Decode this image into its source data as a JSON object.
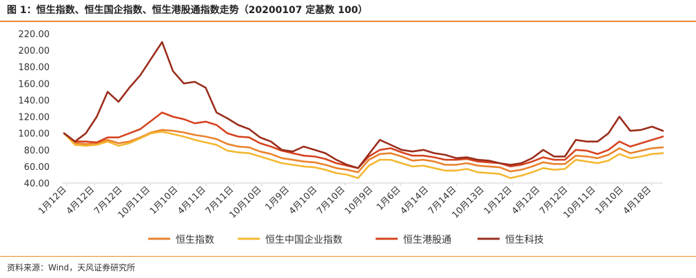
{
  "header": {
    "title": "图 1：恒生指数、恒生国企指数、恒生港股通指数走势（20200107 定基数 100）"
  },
  "footer": {
    "source": "资料来源：Wind，天风证券研究所"
  },
  "colors": {
    "rule": "#e9862e",
    "axis": "#cfcfcf"
  },
  "chart_data": {
    "type": "line",
    "title": "恒生指数、恒生国企指数、恒生港股通指数走势（20200107 定基数 100）",
    "xlabel": "",
    "ylabel": "",
    "ylim": [
      40,
      220
    ],
    "yticks": [
      "220.00",
      "200.00",
      "180.00",
      "160.00",
      "140.00",
      "120.00",
      "100.00",
      "80.00",
      "60.00",
      "40.00"
    ],
    "xticks": [
      "1月12日",
      "4月12日",
      "7月12日",
      "10月11日",
      "1月10日",
      "4月11日",
      "7月11日",
      "10月10日",
      "1月9日",
      "4月10日",
      "7月10日",
      "10月9日",
      "1月6日",
      "4月14日",
      "7月14日",
      "10月13日",
      "1月12日",
      "4月12日",
      "7月12日",
      "10月11日",
      "1月10日",
      "4月18日"
    ],
    "legend_position": "bottom",
    "series": [
      {
        "name": "恒生指数",
        "color": "#e9822c",
        "values": [
          100,
          88,
          87,
          88,
          92,
          88,
          90,
          95,
          101,
          104,
          103,
          101,
          98,
          96,
          93,
          87,
          84,
          83,
          78,
          75,
          70,
          68,
          66,
          65,
          62,
          58,
          56,
          53,
          68,
          75,
          76,
          72,
          67,
          68,
          66,
          62,
          62,
          64,
          61,
          60,
          59,
          54,
          56,
          60,
          65,
          63,
          63,
          73,
          72,
          70,
          74,
          82,
          76,
          79,
          82,
          83
        ]
      },
      {
        "name": "恒生中国企业指数",
        "color": "#f4b731",
        "values": [
          100,
          86,
          85,
          86,
          90,
          85,
          88,
          94,
          100,
          102,
          99,
          96,
          92,
          89,
          86,
          79,
          77,
          76,
          72,
          68,
          64,
          62,
          60,
          59,
          56,
          52,
          50,
          46,
          61,
          68,
          68,
          64,
          60,
          61,
          58,
          55,
          55,
          57,
          53,
          52,
          51,
          46,
          49,
          53,
          58,
          56,
          57,
          68,
          66,
          64,
          67,
          75,
          70,
          72,
          75,
          76
        ]
      },
      {
        "name": "恒生港股通",
        "color": "#d5431f",
        "values": [
          100,
          90,
          90,
          89,
          95,
          95,
          100,
          105,
          115,
          125,
          120,
          117,
          112,
          114,
          110,
          100,
          96,
          95,
          88,
          84,
          79,
          76,
          73,
          72,
          69,
          64,
          61,
          58,
          72,
          80,
          82,
          77,
          73,
          73,
          71,
          68,
          68,
          69,
          66,
          65,
          64,
          60,
          62,
          66,
          71,
          68,
          68,
          80,
          79,
          75,
          80,
          90,
          84,
          88,
          92,
          96
        ]
      },
      {
        "name": "恒生科技",
        "color": "#9a2d1c",
        "values": [
          100,
          90,
          100,
          120,
          150,
          138,
          155,
          170,
          190,
          210,
          175,
          160,
          162,
          155,
          125,
          118,
          110,
          105,
          95,
          90,
          80,
          78,
          84,
          80,
          76,
          68,
          62,
          58,
          75,
          92,
          86,
          80,
          78,
          80,
          76,
          74,
          70,
          71,
          68,
          67,
          64,
          62,
          64,
          70,
          80,
          72,
          72,
          92,
          90,
          90,
          100,
          120,
          103,
          104,
          108,
          103
        ]
      }
    ]
  }
}
